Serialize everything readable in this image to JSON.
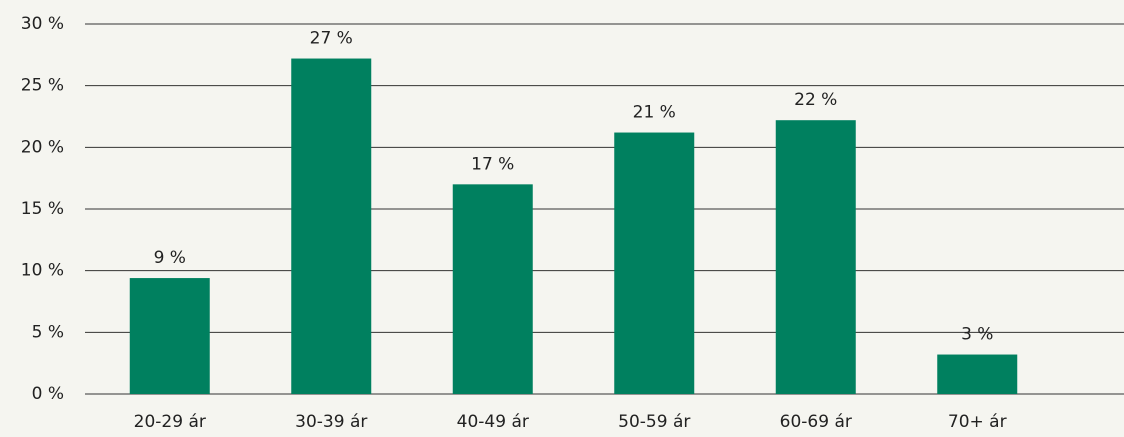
{
  "chart_data": {
    "type": "bar",
    "categories": [
      "20-29 ár",
      "30-39 ár",
      "40-49 ár",
      "50-59 ár",
      "60-69 ár",
      "70+ ár"
    ],
    "values": [
      9.4,
      27.2,
      17,
      21.2,
      22.2,
      3.2
    ],
    "value_labels": [
      "9 %",
      "27 %",
      "17 %",
      "21 %",
      "22 %",
      "3 %"
    ],
    "color": "#00805f",
    "ylim": [
      0,
      30
    ],
    "yticks": [
      {
        "value": 0,
        "label": "0 %"
      },
      {
        "value": 5,
        "label": "5 %"
      },
      {
        "value": 10,
        "label": "10 %"
      },
      {
        "value": 15,
        "label": "15 %"
      },
      {
        "value": 20,
        "label": "20 %"
      },
      {
        "value": 25,
        "label": "25 %"
      },
      {
        "value": 30,
        "label": "30 %"
      }
    ],
    "grid": true
  }
}
